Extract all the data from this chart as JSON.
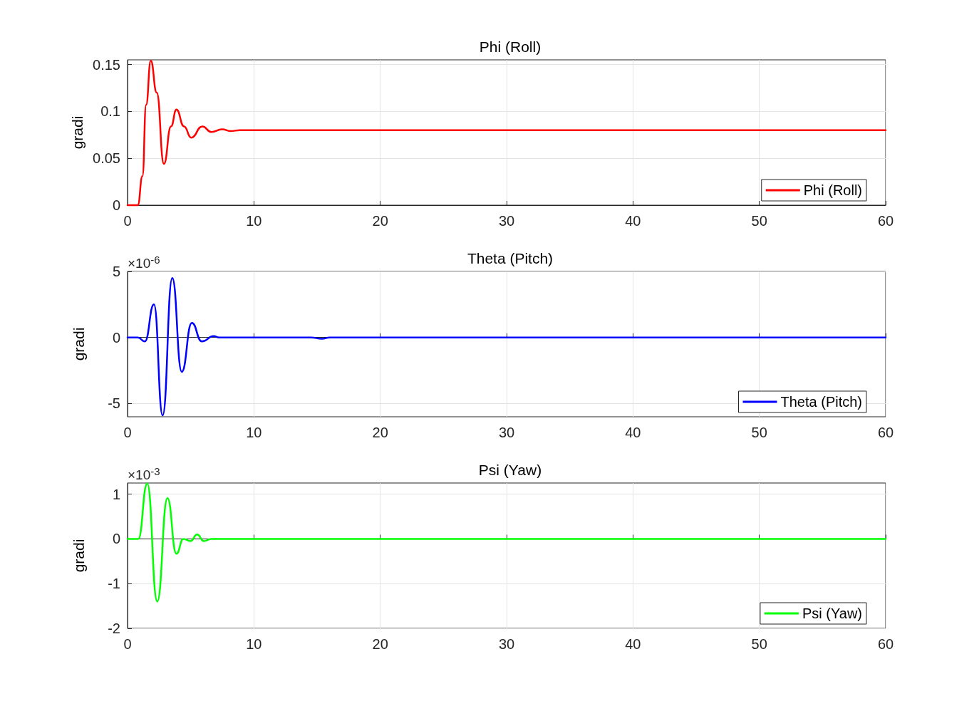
{
  "chart_data": [
    {
      "type": "line",
      "title": "Phi (Roll)",
      "ylabel": "gradi",
      "xlim": [
        0,
        60
      ],
      "xticks": [
        0,
        10,
        20,
        30,
        40,
        50,
        60
      ],
      "ylim": [
        0,
        0.155
      ],
      "yticks": [
        0,
        0.05,
        0.1,
        0.15
      ],
      "grid": true,
      "legend": "bottom right",
      "line_style": "solid",
      "series": [
        {
          "name": "Phi (Roll)",
          "color": "#ff0000",
          "x": [
            0,
            0.81,
            1.18,
            1.47,
            1.84,
            2.31,
            2.88,
            3.44,
            3.87,
            4.47,
            5.04,
            5.92,
            6.64,
            7.48,
            8.14,
            8.9,
            60
          ],
          "values": [
            0,
            0,
            0.031,
            0.107,
            0.154,
            0.12,
            0.044,
            0.084,
            0.102,
            0.084,
            0.072,
            0.084,
            0.078,
            0.081,
            0.079,
            0.08,
            0.08
          ]
        }
      ]
    },
    {
      "type": "line",
      "title": "Theta (Pitch)",
      "ylabel": "gradi",
      "annotations": [
        "×10$^{-6}$"
      ],
      "xlim": [
        0,
        60
      ],
      "xticks": [
        0,
        10,
        20,
        30,
        40,
        50,
        60
      ],
      "ylim": [
        -6,
        5
      ],
      "yticks": [
        -5,
        0,
        5
      ],
      "grid": true,
      "legend": "bottom right",
      "line_style": "solid",
      "series": [
        {
          "name": "Theta (Pitch)",
          "color": "#0000ff",
          "x": [
            0,
            0.81,
            1.37,
            2.09,
            2.78,
            3.54,
            4.29,
            5.09,
            5.88,
            6.82,
            7.25,
            14.53,
            15.38,
            16,
            60
          ],
          "values": [
            0,
            0,
            -0.3,
            2.5,
            -5.9,
            4.5,
            -2.6,
            1.1,
            -0.3,
            0.1,
            0,
            0,
            -0.1,
            0,
            0
          ]
        }
      ]
    },
    {
      "type": "line",
      "title": "Psi (Yaw)",
      "ylabel": "gradi",
      "annotations": [
        "×10$^{-3}$"
      ],
      "xlim": [
        0,
        60
      ],
      "xticks": [
        0,
        10,
        20,
        30,
        40,
        50,
        60
      ],
      "ylim": [
        -2,
        1.25
      ],
      "yticks": [
        -2,
        -1,
        0,
        1
      ],
      "grid": true,
      "legend": "bottom right",
      "line_style": "solid",
      "series": [
        {
          "name": "Psi (Yaw)",
          "color": "#00ff00",
          "x": [
            0,
            0.85,
            1.56,
            2.35,
            3.16,
            3.87,
            4.42,
            4.98,
            5.51,
            6.04,
            6.64,
            8.6,
            60
          ],
          "values": [
            0,
            0,
            1.24,
            -1.4,
            0.91,
            -0.33,
            0,
            -0.05,
            0.1,
            -0.05,
            0,
            0,
            0
          ]
        }
      ]
    }
  ]
}
